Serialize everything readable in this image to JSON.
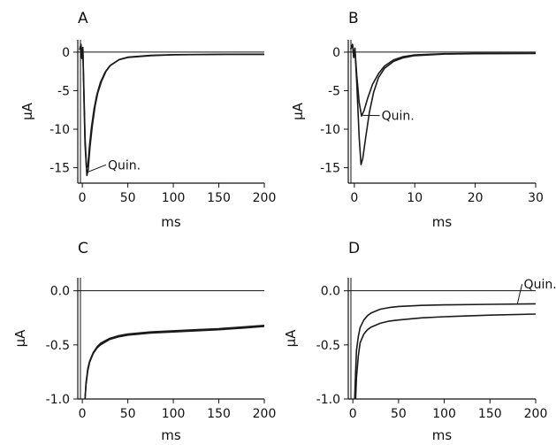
{
  "chart_data": [
    {
      "panel_label": "A",
      "type": "line",
      "xlabel": "ms",
      "ylabel": "µA",
      "xlim": [
        -5,
        200
      ],
      "ylim": [
        -17,
        1.6
      ],
      "xticks": [
        0,
        50,
        100,
        150,
        200
      ],
      "yticks": [
        0,
        -5,
        -10,
        -15
      ],
      "zero_line": true,
      "annotations": [
        {
          "text": "Quin.",
          "x": 28,
          "y": -15.2,
          "target_x": 5,
          "target_y": -15.6
        }
      ],
      "series": [
        {
          "values": [
            [
              -3,
              0.3
            ],
            [
              -1.5,
              1.0
            ],
            [
              -0.5,
              -0.8
            ],
            [
              0.5,
              0.6
            ],
            [
              1.5,
              -4
            ],
            [
              3,
              -11
            ],
            [
              4.5,
              -15
            ],
            [
              6,
              -14.8
            ],
            [
              8,
              -12
            ],
            [
              10,
              -9.8
            ],
            [
              13,
              -7.3
            ],
            [
              16,
              -5.5
            ],
            [
              20,
              -3.9
            ],
            [
              25,
              -2.6
            ],
            [
              30,
              -1.8
            ],
            [
              40,
              -1.0
            ],
            [
              50,
              -0.7
            ],
            [
              75,
              -0.45
            ],
            [
              100,
              -0.35
            ],
            [
              150,
              -0.3
            ],
            [
              200,
              -0.28
            ]
          ]
        },
        {
          "values": [
            [
              -3,
              0.3
            ],
            [
              -1.5,
              1.0
            ],
            [
              -0.5,
              -0.8
            ],
            [
              0.5,
              0.6
            ],
            [
              1.5,
              -4.5
            ],
            [
              3,
              -12
            ],
            [
              5,
              -16
            ],
            [
              6.5,
              -15.2
            ],
            [
              8.5,
              -12.2
            ],
            [
              11,
              -9.5
            ],
            [
              14,
              -7
            ],
            [
              17,
              -5.3
            ],
            [
              21,
              -3.8
            ],
            [
              26,
              -2.5
            ],
            [
              31,
              -1.7
            ],
            [
              41,
              -0.95
            ],
            [
              50,
              -0.65
            ],
            [
              75,
              -0.42
            ],
            [
              100,
              -0.33
            ],
            [
              150,
              -0.28
            ],
            [
              200,
              -0.27
            ]
          ]
        }
      ]
    },
    {
      "panel_label": "B",
      "type": "line",
      "xlabel": "ms",
      "ylabel": "µA",
      "xlim": [
        -1,
        30
      ],
      "ylim": [
        -17,
        1.6
      ],
      "xticks": [
        0,
        10,
        20,
        30
      ],
      "yticks": [
        0,
        -5,
        -10,
        -15
      ],
      "zero_line": true,
      "annotations": [
        {
          "text": "Quin.",
          "x": 4.5,
          "y": -8.8,
          "target_x": 1.4,
          "target_y": -8.2
        }
      ],
      "series": [
        {
          "values": [
            [
              -0.6,
              0.4
            ],
            [
              -0.3,
              1.0
            ],
            [
              -0.1,
              -0.7
            ],
            [
              0.1,
              0.5
            ],
            [
              0.4,
              -4
            ],
            [
              0.8,
              -11
            ],
            [
              1.1,
              -14.6
            ],
            [
              1.4,
              -13.8
            ],
            [
              1.9,
              -11
            ],
            [
              2.5,
              -7.8
            ],
            [
              3.2,
              -5.2
            ],
            [
              4,
              -3.3
            ],
            [
              5,
              -2.1
            ],
            [
              6.5,
              -1.2
            ],
            [
              8,
              -0.75
            ],
            [
              10,
              -0.45
            ],
            [
              15,
              -0.25
            ],
            [
              20,
              -0.2
            ],
            [
              30,
              -0.18
            ]
          ]
        },
        {
          "values": [
            [
              -0.6,
              0.4
            ],
            [
              -0.3,
              1.0
            ],
            [
              -0.1,
              -0.7
            ],
            [
              0.1,
              0.5
            ],
            [
              0.4,
              -3
            ],
            [
              0.8,
              -6.5
            ],
            [
              1.2,
              -8.3
            ],
            [
              1.6,
              -7.6
            ],
            [
              2.2,
              -6
            ],
            [
              3,
              -4.2
            ],
            [
              4,
              -2.8
            ],
            [
              5,
              -1.8
            ],
            [
              6.5,
              -1.0
            ],
            [
              8,
              -0.6
            ],
            [
              10,
              -0.35
            ],
            [
              15,
              -0.2
            ],
            [
              20,
              -0.16
            ],
            [
              30,
              -0.15
            ]
          ]
        }
      ]
    },
    {
      "panel_label": "C",
      "type": "line",
      "xlabel": "ms",
      "ylabel": "µA",
      "xlim": [
        -5,
        200
      ],
      "ylim": [
        -1.0,
        0.12
      ],
      "xticks": [
        0,
        50,
        100,
        150,
        200
      ],
      "yticks": [
        0.0,
        -0.5,
        -1.0
      ],
      "ytick_labels": [
        "0.0",
        "-0.5",
        "-1.0"
      ],
      "zero_line": true,
      "annotations": [],
      "series": [
        {
          "values": [
            [
              3,
              -1.0
            ],
            [
              4,
              -0.85
            ],
            [
              6,
              -0.72
            ],
            [
              8,
              -0.65
            ],
            [
              12,
              -0.57
            ],
            [
              16,
              -0.52
            ],
            [
              20,
              -0.485
            ],
            [
              30,
              -0.44
            ],
            [
              40,
              -0.415
            ],
            [
              50,
              -0.4
            ],
            [
              75,
              -0.38
            ],
            [
              100,
              -0.37
            ],
            [
              125,
              -0.36
            ],
            [
              150,
              -0.35
            ],
            [
              175,
              -0.335
            ],
            [
              200,
              -0.32
            ]
          ]
        },
        {
          "values": [
            [
              3,
              -1.0
            ],
            [
              4,
              -0.87
            ],
            [
              6,
              -0.74
            ],
            [
              8,
              -0.66
            ],
            [
              12,
              -0.58
            ],
            [
              16,
              -0.53
            ],
            [
              20,
              -0.5
            ],
            [
              30,
              -0.45
            ],
            [
              40,
              -0.425
            ],
            [
              50,
              -0.41
            ],
            [
              75,
              -0.39
            ],
            [
              100,
              -0.38
            ],
            [
              125,
              -0.37
            ],
            [
              150,
              -0.36
            ],
            [
              175,
              -0.345
            ],
            [
              200,
              -0.33
            ]
          ]
        }
      ]
    },
    {
      "panel_label": "D",
      "type": "line",
      "xlabel": "ms",
      "ylabel": "µA",
      "xlim": [
        -5,
        200
      ],
      "ylim": [
        -1.0,
        0.12
      ],
      "xticks": [
        0,
        50,
        100,
        150,
        200
      ],
      "yticks": [
        0.0,
        -0.5,
        -1.0
      ],
      "ytick_labels": [
        "0.0",
        "-0.5",
        "-1.0"
      ],
      "zero_line": true,
      "annotations": [
        {
          "text": "Quin.",
          "x": 187,
          "y": 0.02,
          "target_x": 180,
          "target_y": -0.12
        }
      ],
      "series": [
        {
          "values": [
            [
              2,
              -1.0
            ],
            [
              3,
              -0.75
            ],
            [
              4,
              -0.55
            ],
            [
              6,
              -0.42
            ],
            [
              8,
              -0.34
            ],
            [
              12,
              -0.27
            ],
            [
              16,
              -0.23
            ],
            [
              20,
              -0.205
            ],
            [
              30,
              -0.17
            ],
            [
              40,
              -0.155
            ],
            [
              50,
              -0.145
            ],
            [
              75,
              -0.135
            ],
            [
              100,
              -0.13
            ],
            [
              150,
              -0.125
            ],
            [
              200,
              -0.12
            ]
          ]
        },
        {
          "values": [
            [
              3,
              -1.0
            ],
            [
              4,
              -0.8
            ],
            [
              6,
              -0.6
            ],
            [
              8,
              -0.48
            ],
            [
              12,
              -0.4
            ],
            [
              16,
              -0.36
            ],
            [
              20,
              -0.335
            ],
            [
              30,
              -0.3
            ],
            [
              40,
              -0.28
            ],
            [
              50,
              -0.27
            ],
            [
              75,
              -0.25
            ],
            [
              100,
              -0.24
            ],
            [
              150,
              -0.225
            ],
            [
              200,
              -0.215
            ]
          ]
        }
      ]
    }
  ]
}
